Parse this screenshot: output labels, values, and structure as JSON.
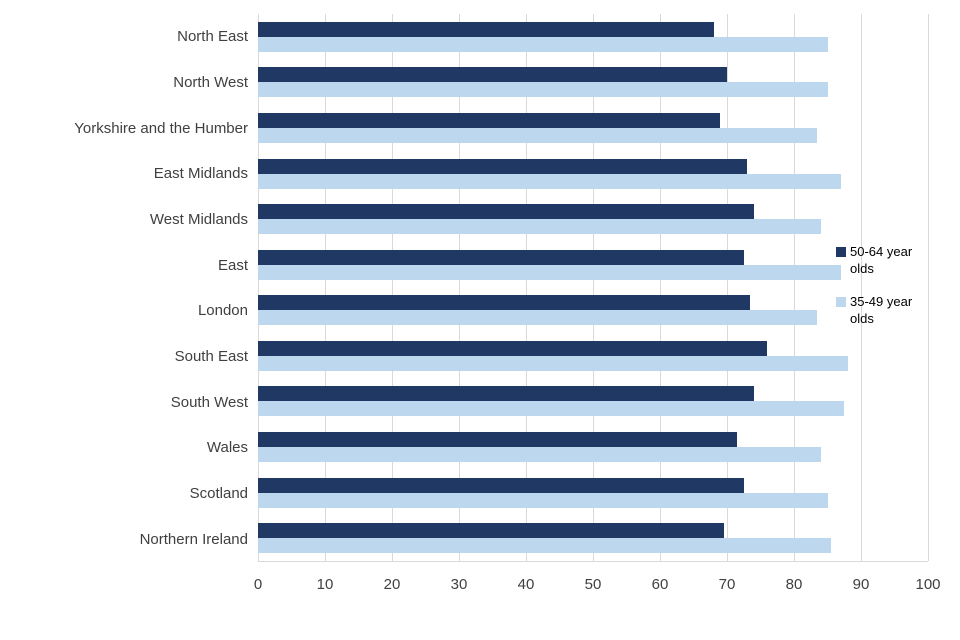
{
  "chart_data": {
    "type": "bar",
    "orientation": "horizontal",
    "title": "",
    "xlabel": "",
    "ylabel": "",
    "xlim": [
      0,
      100
    ],
    "x_ticks": [
      0,
      10,
      20,
      30,
      40,
      50,
      60,
      70,
      80,
      90,
      100
    ],
    "grid": true,
    "legend_position": "right",
    "categories": [
      "North East",
      "North West",
      "Yorkshire and the Humber",
      "East Midlands",
      "West Midlands",
      "East",
      "London",
      "South East",
      "South West",
      "Wales",
      "Scotland",
      "Northern Ireland"
    ],
    "series": [
      {
        "name": "50-64 year olds",
        "color": "#1F3864",
        "values": [
          68,
          70,
          69,
          73,
          74,
          72.5,
          73.5,
          76,
          74,
          71.5,
          72.5,
          69.5
        ]
      },
      {
        "name": "35-49 year olds",
        "color": "#BDD7EE",
        "values": [
          85,
          85,
          83.5,
          87,
          84,
          87,
          83.5,
          88,
          87.5,
          84,
          85,
          85.5
        ]
      }
    ]
  },
  "colors": {
    "gridline": "#d9d9d9",
    "axis_text": "#404040",
    "legend_text": "#000000",
    "background": "#ffffff"
  }
}
